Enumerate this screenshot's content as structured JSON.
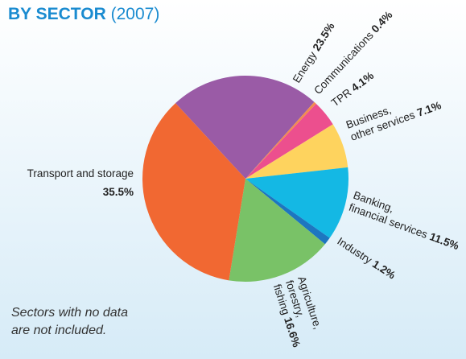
{
  "chart_data": {
    "type": "pie",
    "title": "BY SECTOR",
    "subtitle": "(2007)",
    "note": "Sectors with no data are not included.",
    "categories": [
      "Energy",
      "Communications",
      "TPR",
      "Business, other services",
      "Banking, financial services",
      "Industry",
      "Agriculture, forestry, fishing",
      "Transport and storage"
    ],
    "values": [
      23.5,
      0.4,
      4.1,
      7.1,
      11.5,
      1.2,
      16.6,
      35.5
    ],
    "value_labels": [
      "23.5%",
      "0.4%",
      "4.1%",
      "7.1%",
      "11.5%",
      "1.2%",
      "16.6%",
      "35.5%"
    ],
    "colors": [
      "#9a5ba6",
      "#f28c4e",
      "#ec4f8e",
      "#fed35e",
      "#14b8e4",
      "#1d76c0",
      "#79c267",
      "#f16832"
    ]
  }
}
